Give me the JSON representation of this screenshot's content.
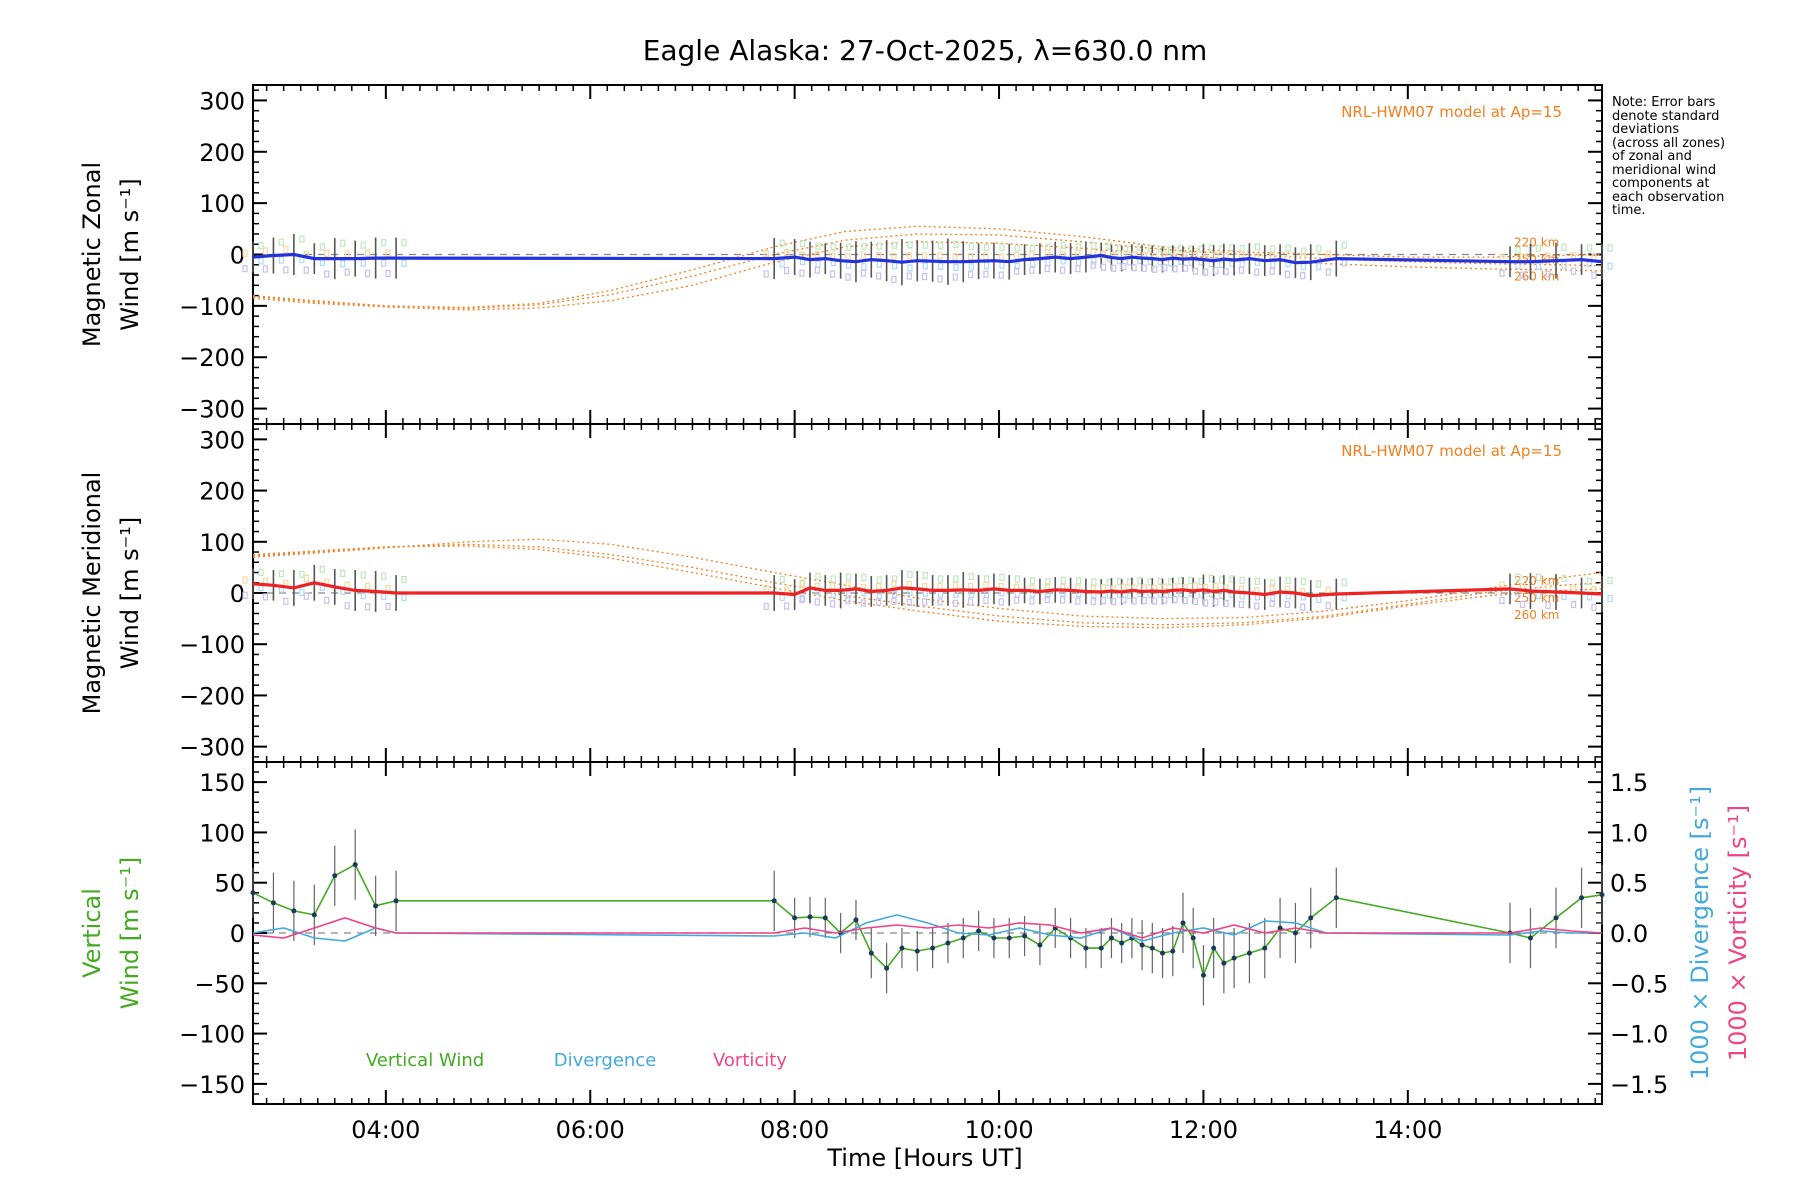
{
  "chart_data": {
    "type": "line",
    "title": "Eagle Alaska: 27-Oct-2025, λ=630.0 nm",
    "xlabel": "Time [Hours UT]",
    "xlim": [
      2.7,
      15.9
    ],
    "x_ticks": [
      {
        "value": 4,
        "label": "04:00"
      },
      {
        "value": 6,
        "label": "06:00"
      },
      {
        "value": 8,
        "label": "08:00"
      },
      {
        "value": 10,
        "label": "10:00"
      },
      {
        "value": 12,
        "label": "12:00"
      },
      {
        "value": 14,
        "label": "14:00"
      }
    ],
    "note": "Note: Error bars\ndenote standard\ndeviations\n(across all zones)\nof zonal and\nmeridional wind\ncomponents at\neach observation\ntime.",
    "obs_times": [
      2.7,
      2.9,
      3.1,
      3.3,
      3.5,
      3.7,
      3.9,
      4.1,
      7.8,
      8.0,
      8.15,
      8.3,
      8.45,
      8.6,
      8.75,
      8.9,
      9.05,
      9.2,
      9.35,
      9.5,
      9.65,
      9.8,
      9.95,
      10.1,
      10.25,
      10.4,
      10.55,
      10.7,
      10.85,
      11.0,
      11.1,
      11.2,
      11.3,
      11.4,
      11.5,
      11.6,
      11.7,
      11.8,
      11.9,
      12.0,
      12.1,
      12.2,
      12.3,
      12.45,
      12.6,
      12.75,
      12.9,
      13.05,
      13.3,
      15.0,
      15.2,
      15.45,
      15.7,
      15.9
    ],
    "panels": [
      {
        "id": "zonal",
        "ylabel_line1": "Magnetic Zonal",
        "ylabel_line2": "Wind [m s⁻¹]",
        "ylim": [
          -330,
          330
        ],
        "y_ticks": [
          300,
          200,
          100,
          0,
          -100,
          -200,
          -300
        ],
        "model_label": "NRL-HWM07 model at Ap=15",
        "model_altitudes": [
          "220 km",
          "250 km",
          "260 km"
        ],
        "series": [
          {
            "name": "Magnetic Zonal Wind",
            "color": "#2233dd",
            "values": [
              -5,
              -2,
              0,
              -8,
              -8,
              -8,
              -7,
              -7,
              -8,
              -5,
              -10,
              -8,
              -12,
              -14,
              -10,
              -12,
              -15,
              -12,
              -13,
              -14,
              -14,
              -13,
              -12,
              -14,
              -10,
              -8,
              -5,
              -8,
              -5,
              -2,
              -6,
              -8,
              -5,
              -7,
              -8,
              -10,
              -7,
              -9,
              -8,
              -10,
              -12,
              -9,
              -11,
              -8,
              -12,
              -10,
              -16,
              -15,
              -8,
              -14,
              -14,
              -12,
              -10,
              -14
            ],
            "errors": [
              30,
              35,
              40,
              30,
              40,
              35,
              40,
              40,
              40,
              35,
              35,
              30,
              35,
              40,
              35,
              40,
              45,
              40,
              40,
              45,
              40,
              35,
              35,
              35,
              30,
              30,
              30,
              30,
              30,
              25,
              25,
              25,
              25,
              25,
              25,
              25,
              25,
              25,
              25,
              30,
              30,
              30,
              30,
              30,
              30,
              30,
              30,
              35,
              35,
              30,
              35,
              35,
              30,
              35
            ]
          }
        ],
        "model_curves": [
          {
            "name": "220 km",
            "x": [
              2.7,
              3.3,
              4.0,
              4.8,
              5.5,
              6.2,
              7.0,
              7.8,
              8.5,
              9.2,
              10.0,
              10.8,
              11.6,
              12.4,
              13.2,
              14.0,
              14.8,
              15.5,
              15.9
            ],
            "y": [
              -80,
              -90,
              -100,
              -103,
              -95,
              -70,
              -30,
              15,
              45,
              55,
              50,
              35,
              15,
              5,
              0,
              -5,
              -5,
              -2,
              0
            ]
          },
          {
            "name": "250 km",
            "x": [
              2.7,
              3.3,
              4.0,
              4.8,
              5.5,
              6.2,
              7.0,
              7.8,
              8.5,
              9.2,
              10.0,
              10.8,
              11.6,
              12.4,
              13.2,
              14.0,
              14.8,
              15.5,
              15.9
            ],
            "y": [
              -82,
              -92,
              -100,
              -105,
              -98,
              -78,
              -42,
              0,
              28,
              40,
              38,
              25,
              10,
              0,
              -8,
              -14,
              -18,
              -20,
              -22
            ]
          },
          {
            "name": "260 km",
            "x": [
              2.7,
              3.3,
              4.0,
              4.8,
              5.5,
              6.2,
              7.0,
              7.8,
              8.5,
              9.2,
              10.0,
              10.8,
              11.6,
              12.4,
              13.2,
              14.0,
              14.8,
              15.5,
              15.9
            ],
            "y": [
              -85,
              -95,
              -102,
              -108,
              -104,
              -90,
              -60,
              -15,
              15,
              25,
              22,
              12,
              0,
              -10,
              -18,
              -24,
              -28,
              -30,
              -32
            ]
          }
        ]
      },
      {
        "id": "meridional",
        "ylabel_line1": "Magnetic Meridional",
        "ylabel_line2": "Wind [m s⁻¹]",
        "ylim": [
          -330,
          330
        ],
        "y_ticks": [
          300,
          200,
          100,
          0,
          -100,
          -200,
          -300
        ],
        "model_label": "NRL-HWM07 model at Ap=15",
        "model_altitudes": [
          "220 km",
          "250 km",
          "260 km"
        ],
        "series": [
          {
            "name": "Magnetic Meridional Wind",
            "color": "#ee2222",
            "values": [
              18,
              15,
              10,
              20,
              12,
              5,
              3,
              0,
              0,
              -3,
              10,
              5,
              5,
              8,
              3,
              5,
              10,
              8,
              5,
              5,
              6,
              5,
              8,
              5,
              5,
              3,
              6,
              5,
              3,
              2,
              4,
              2,
              5,
              3,
              4,
              3,
              5,
              6,
              4,
              6,
              3,
              5,
              2,
              0,
              -3,
              2,
              0,
              -5,
              -2,
              8,
              4,
              2,
              0,
              -2
            ],
            "errors": [
              30,
              30,
              35,
              35,
              35,
              40,
              40,
              35,
              35,
              30,
              30,
              30,
              35,
              30,
              30,
              30,
              35,
              35,
              30,
              30,
              35,
              30,
              30,
              30,
              25,
              25,
              25,
              25,
              25,
              25,
              25,
              25,
              25,
              25,
              25,
              25,
              25,
              25,
              25,
              30,
              30,
              30,
              30,
              30,
              30,
              30,
              30,
              30,
              30,
              30,
              35,
              35,
              30,
              35
            ]
          }
        ],
        "model_curves": [
          {
            "name": "220 km",
            "x": [
              2.7,
              3.3,
              4.0,
              4.8,
              5.5,
              6.2,
              7.0,
              7.8,
              8.5,
              9.2,
              10.0,
              10.8,
              11.6,
              12.4,
              13.2,
              14.0,
              14.8,
              15.5,
              15.9
            ],
            "y": [
              70,
              78,
              88,
              100,
              105,
              95,
              70,
              40,
              15,
              -10,
              -30,
              -45,
              -50,
              -48,
              -35,
              -15,
              10,
              30,
              40
            ]
          },
          {
            "name": "250 km",
            "x": [
              2.7,
              3.3,
              4.0,
              4.8,
              5.5,
              6.2,
              7.0,
              7.8,
              8.5,
              9.2,
              10.0,
              10.8,
              11.6,
              12.4,
              13.2,
              14.0,
              14.8,
              15.5,
              15.9
            ],
            "y": [
              72,
              80,
              90,
              95,
              90,
              75,
              50,
              20,
              -5,
              -25,
              -45,
              -58,
              -62,
              -58,
              -45,
              -22,
              2,
              15,
              20
            ]
          },
          {
            "name": "260 km",
            "x": [
              2.7,
              3.3,
              4.0,
              4.8,
              5.5,
              6.2,
              7.0,
              7.8,
              8.5,
              9.2,
              10.0,
              10.8,
              11.6,
              12.4,
              13.2,
              14.0,
              14.8,
              15.5,
              15.9
            ],
            "y": [
              75,
              82,
              90,
              92,
              85,
              68,
              40,
              10,
              -15,
              -35,
              -55,
              -65,
              -68,
              -62,
              -48,
              -25,
              -5,
              5,
              8
            ]
          }
        ]
      },
      {
        "id": "vertical",
        "ylabel_line1": "Vertical",
        "ylabel_line2": "Wind [m s⁻¹]",
        "ylim": [
          -170,
          170
        ],
        "y_ticks": [
          150,
          100,
          50,
          0,
          -50,
          -100,
          -150
        ],
        "right_axis": {
          "ylim": [
            -1.7,
            1.7
          ],
          "ticks": [
            1.5,
            1.0,
            0.5,
            0.0,
            -0.5,
            -1.0,
            -1.5
          ],
          "label_divergence": "1000 × Divergence [s⁻¹]",
          "label_vorticity": "1000 × Vorticity [s⁻¹]"
        },
        "legend": [
          "Vertical Wind",
          "Divergence",
          "Vorticity"
        ],
        "series": [
          {
            "name": "Vertical Wind",
            "color": "#44aa22",
            "axis": "left",
            "x": [
              2.7,
              2.9,
              3.1,
              3.3,
              3.5,
              3.7,
              3.9,
              4.1,
              7.8,
              8.0,
              8.15,
              8.3,
              8.45,
              8.6,
              8.75,
              8.9,
              9.05,
              9.2,
              9.35,
              9.5,
              9.65,
              9.8,
              9.95,
              10.1,
              10.25,
              10.4,
              10.55,
              10.7,
              10.85,
              11.0,
              11.1,
              11.2,
              11.3,
              11.4,
              11.5,
              11.6,
              11.7,
              11.8,
              11.9,
              12.0,
              12.1,
              12.2,
              12.3,
              12.45,
              12.6,
              12.75,
              12.9,
              13.05,
              13.3,
              15.0,
              15.2,
              15.45,
              15.7,
              15.9
            ],
            "values": [
              40,
              30,
              22,
              18,
              57,
              68,
              27,
              32,
              32,
              15,
              16,
              15,
              0,
              13,
              -20,
              -35,
              -15,
              -18,
              -15,
              -10,
              -5,
              2,
              -5,
              -5,
              -3,
              -12,
              5,
              -5,
              -15,
              -15,
              -5,
              -10,
              -5,
              -12,
              -15,
              -20,
              -18,
              10,
              -5,
              -42,
              -15,
              -30,
              -25,
              -20,
              -15,
              5,
              0,
              15,
              35,
              0,
              -5,
              15,
              35,
              38
            ],
            "errors": [
              25,
              30,
              30,
              30,
              30,
              35,
              30,
              30,
              30,
              20,
              20,
              20,
              20,
              20,
              25,
              25,
              20,
              20,
              20,
              20,
              20,
              20,
              20,
              20,
              20,
              20,
              20,
              20,
              20,
              20,
              20,
              20,
              20,
              25,
              25,
              25,
              25,
              30,
              30,
              30,
              30,
              30,
              30,
              30,
              30,
              30,
              30,
              30,
              30,
              30,
              30,
              30,
              30,
              30
            ]
          },
          {
            "name": "Divergence",
            "color": "#44aadd",
            "axis": "right",
            "x": [
              2.7,
              3.0,
              3.3,
              3.6,
              3.9,
              4.1,
              7.8,
              8.1,
              8.4,
              8.7,
              9.0,
              9.3,
              9.6,
              9.9,
              10.2,
              10.5,
              10.8,
              11.1,
              11.4,
              11.7,
              12.0,
              12.3,
              12.6,
              12.9,
              13.2,
              15.0,
              15.3,
              15.6,
              15.9
            ],
            "values": [
              0.0,
              0.05,
              -0.05,
              -0.08,
              0.05,
              0.0,
              -0.03,
              0.0,
              -0.05,
              0.1,
              0.18,
              0.1,
              0.0,
              -0.02,
              0.05,
              -0.02,
              -0.05,
              0.05,
              -0.08,
              0.0,
              0.05,
              -0.02,
              0.12,
              0.1,
              0.0,
              -0.02,
              0.02,
              0.0,
              0.0
            ]
          },
          {
            "name": "Vorticity",
            "color": "#ee4488",
            "axis": "right",
            "x": [
              2.7,
              3.0,
              3.3,
              3.6,
              3.9,
              4.1,
              7.8,
              8.1,
              8.4,
              8.7,
              9.0,
              9.3,
              9.6,
              9.9,
              10.2,
              10.5,
              10.8,
              11.1,
              11.4,
              11.7,
              12.0,
              12.3,
              12.6,
              12.9,
              13.2,
              15.0,
              15.3,
              15.6,
              15.9
            ],
            "values": [
              -0.02,
              -0.05,
              0.05,
              0.15,
              0.05,
              0.0,
              0.0,
              0.05,
              0.0,
              0.05,
              0.08,
              0.05,
              0.08,
              0.05,
              0.1,
              0.08,
              0.0,
              0.05,
              -0.05,
              0.05,
              0.0,
              0.08,
              0.0,
              0.05,
              0.0,
              0.0,
              0.05,
              0.02,
              0.0
            ]
          }
        ]
      }
    ]
  }
}
